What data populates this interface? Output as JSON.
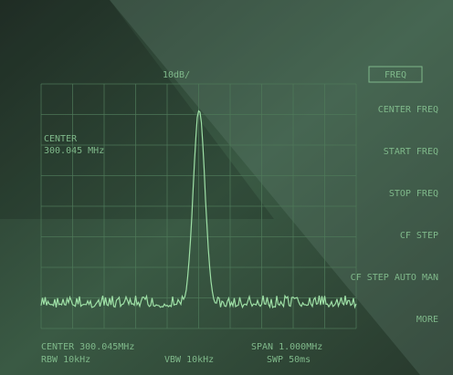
{
  "screen": {
    "scale": "10dB/",
    "marker": {
      "label": "CENTER",
      "value": "300.045 MHz"
    },
    "menu": {
      "title": "FREQ",
      "keys": [
        "CENTER FREQ",
        "START FREQ",
        "STOP FREQ",
        "CF STEP",
        "CF STEP AUTO MAN",
        "MORE"
      ]
    },
    "footer": {
      "center": "CENTER 300.045MHz",
      "span": "SPAN 1.000MHz",
      "rbw": "RBW 10kHz",
      "vbw": "VBW 10kHz",
      "swp": "SWP 50ms"
    }
  }
}
